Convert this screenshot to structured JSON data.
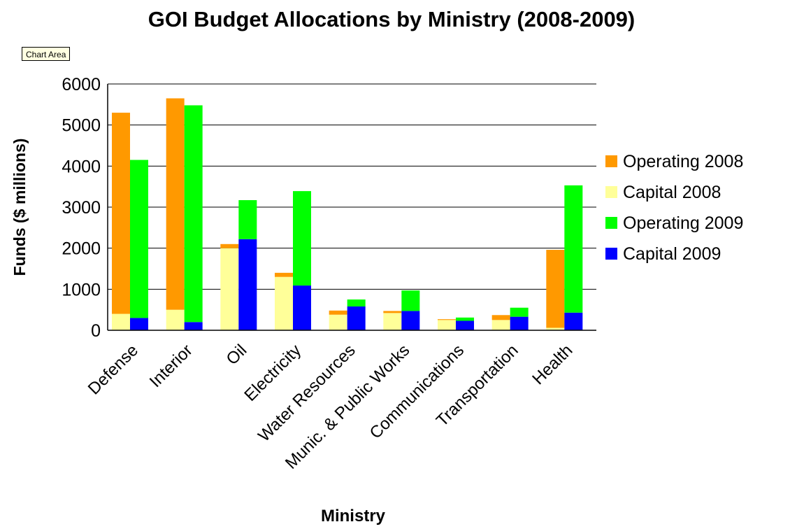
{
  "tooltip": "Chart Area",
  "chart_data": {
    "type": "bar",
    "stacked": true,
    "title": "GOI Budget Allocations by Ministry (2008-2009)",
    "xlabel": "Ministry",
    "ylabel": "Funds ($ millions)",
    "ylim": [
      0,
      6000
    ],
    "yticks": [
      0,
      1000,
      2000,
      3000,
      4000,
      5000,
      6000
    ],
    "grid": true,
    "legend_position": "right",
    "categories": [
      "Defense",
      "Interior",
      "Oil",
      "Electricity",
      "Water Resources",
      "Munic. & Public Works",
      "Communications",
      "Transportation",
      "Health"
    ],
    "series": [
      {
        "name": "Operating 2008",
        "stack": "2008",
        "color": "#ff9900",
        "values": [
          4900,
          5150,
          100,
          100,
          100,
          50,
          20,
          120,
          1900
        ]
      },
      {
        "name": "Capital 2008",
        "stack": "2008",
        "color": "#ffff99",
        "values": [
          400,
          500,
          2000,
          1300,
          380,
          420,
          250,
          250,
          60
        ]
      },
      {
        "name": "Operating 2009",
        "stack": "2009",
        "color": "#00ff00",
        "values": [
          3850,
          5280,
          950,
          2300,
          170,
          500,
          80,
          220,
          3100
        ]
      },
      {
        "name": "Capital 2009",
        "stack": "2009",
        "color": "#0000ff",
        "values": [
          300,
          200,
          2220,
          1090,
          580,
          470,
          230,
          330,
          430
        ]
      }
    ]
  }
}
